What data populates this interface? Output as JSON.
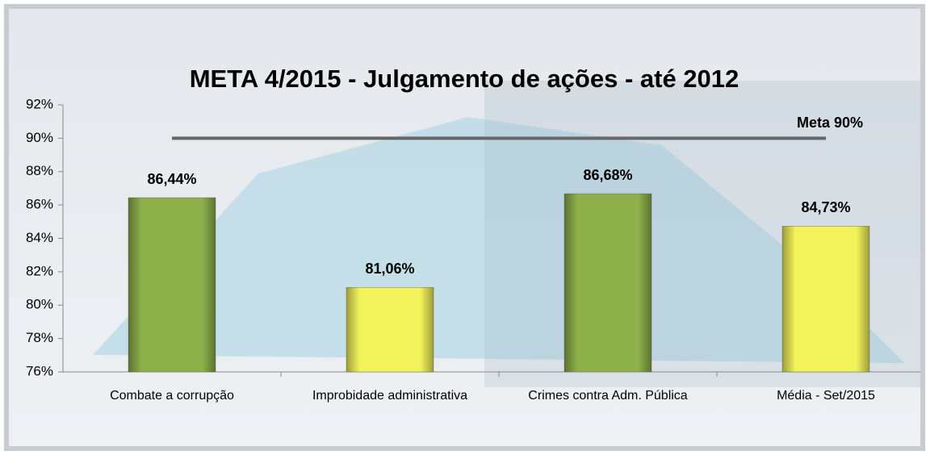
{
  "chart_data": {
    "type": "bar",
    "title": "META 4/2015 - Julgamento de ações - até 2012",
    "categories": [
      "Combate a corrupção",
      "Improbidade administrativa",
      "Crimes contra Adm. Pública",
      "Média - Set/2015"
    ],
    "values": [
      86.44,
      81.06,
      86.68,
      84.73
    ],
    "value_labels": [
      "86,44%",
      "81,06%",
      "86,68%",
      "84,73%"
    ],
    "colors": [
      "#8db04a",
      "#f2f25a",
      "#8db04a",
      "#f2f25a"
    ],
    "ylim": [
      76,
      92
    ],
    "yticks": [
      {
        "value": 76,
        "label": "76%"
      },
      {
        "value": 78,
        "label": "78%"
      },
      {
        "value": 80,
        "label": "80%"
      },
      {
        "value": 82,
        "label": "82%"
      },
      {
        "value": 84,
        "label": "84%"
      },
      {
        "value": 86,
        "label": "86%"
      },
      {
        "value": 88,
        "label": "88%"
      },
      {
        "value": 90,
        "label": "90%"
      },
      {
        "value": 92,
        "label": "92%"
      }
    ],
    "target": {
      "value": 90,
      "label": "Meta 90%",
      "color": "#666666"
    }
  }
}
